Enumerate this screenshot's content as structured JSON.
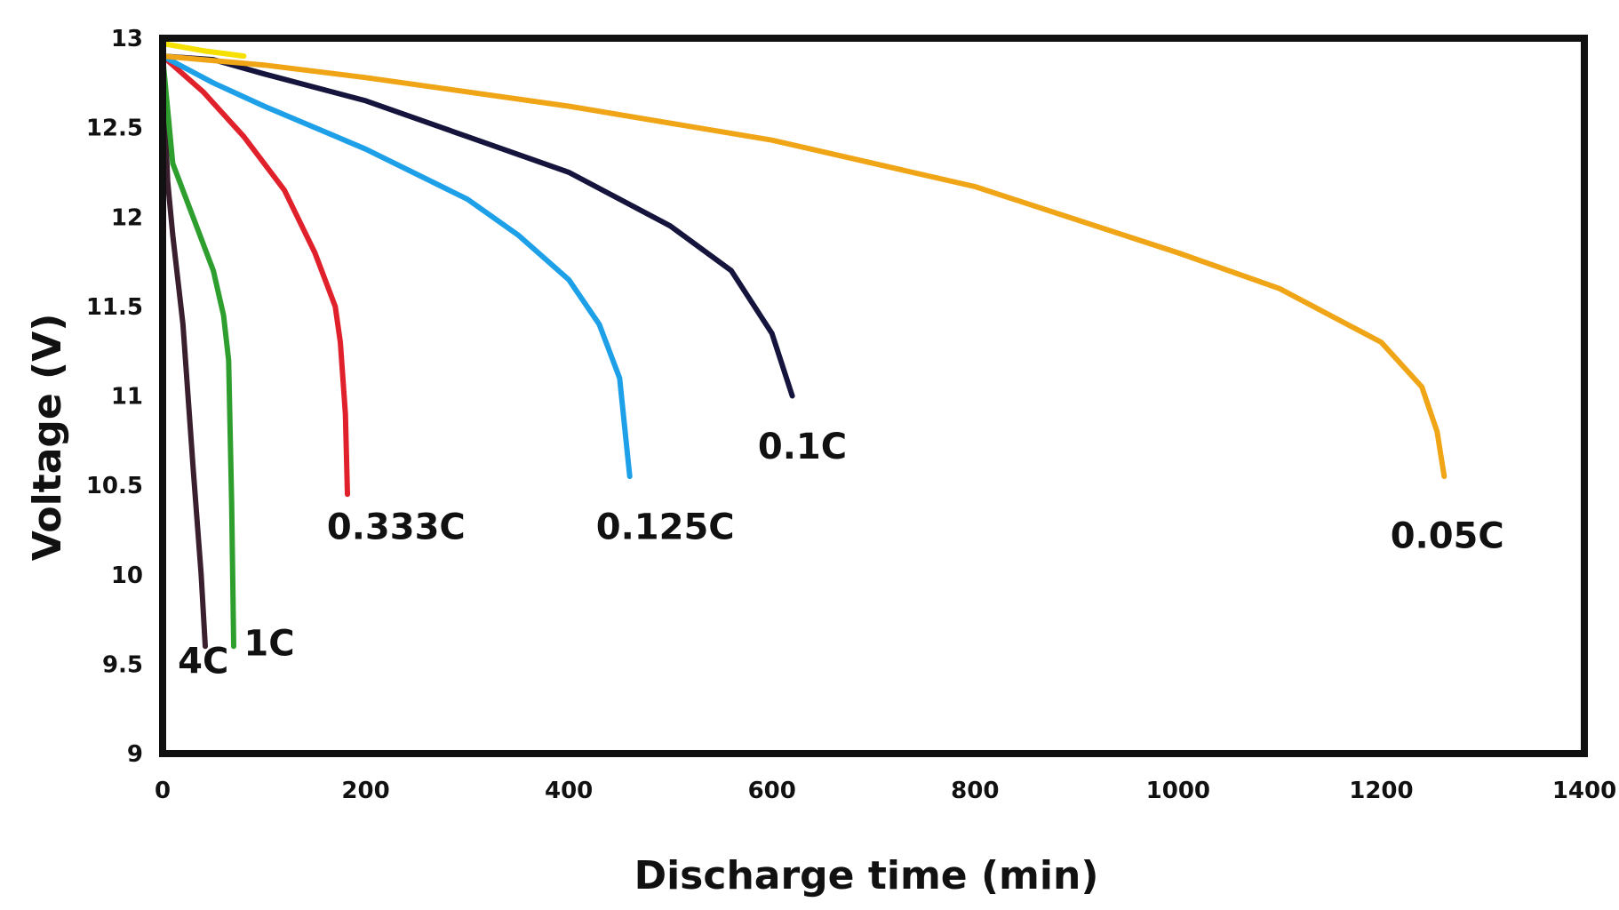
{
  "chart_data": {
    "type": "line",
    "title": "",
    "xlabel": "Discharge time (min)",
    "ylabel": "Voltage (V)",
    "xlim": [
      0,
      1400
    ],
    "ylim": [
      9,
      13
    ],
    "xticks": [
      0,
      200,
      400,
      600,
      800,
      1000,
      1200,
      1400
    ],
    "yticks": [
      9,
      9.5,
      10,
      10.5,
      11,
      11.5,
      12,
      12.5,
      13
    ],
    "xtick_labels": [
      "0",
      "200",
      "400",
      "600",
      "800",
      "1000",
      "1200",
      "1400"
    ],
    "ytick_labels": [
      "9",
      "9.5",
      "10",
      "10.5",
      "11",
      "11.5",
      "12",
      "12.5",
      "13"
    ],
    "grid": false,
    "legend": "none",
    "series": [
      {
        "name": "4C",
        "color": "#3a1f2e",
        "points": [
          [
            0,
            12.9
          ],
          [
            5,
            12.2
          ],
          [
            10,
            11.9
          ],
          [
            20,
            11.4
          ],
          [
            30,
            10.6
          ],
          [
            38,
            10.0
          ],
          [
            42,
            9.6
          ]
        ]
      },
      {
        "name": "1C",
        "color": "#2e9e2e",
        "points": [
          [
            0,
            12.9
          ],
          [
            10,
            12.3
          ],
          [
            30,
            12.0
          ],
          [
            50,
            11.7
          ],
          [
            60,
            11.45
          ],
          [
            65,
            11.2
          ],
          [
            68,
            10.4
          ],
          [
            70,
            9.6
          ]
        ]
      },
      {
        "name": "0.333C",
        "color": "#e0202a",
        "points": [
          [
            0,
            12.9
          ],
          [
            40,
            12.7
          ],
          [
            80,
            12.45
          ],
          [
            120,
            12.15
          ],
          [
            150,
            11.8
          ],
          [
            170,
            11.5
          ],
          [
            175,
            11.3
          ],
          [
            180,
            10.9
          ],
          [
            182,
            10.45
          ]
        ]
      },
      {
        "name": "0.125C",
        "color": "#1ea0e8",
        "points": [
          [
            0,
            12.9
          ],
          [
            50,
            12.75
          ],
          [
            100,
            12.62
          ],
          [
            200,
            12.38
          ],
          [
            300,
            12.1
          ],
          [
            350,
            11.9
          ],
          [
            400,
            11.65
          ],
          [
            430,
            11.4
          ],
          [
            450,
            11.1
          ],
          [
            460,
            10.55
          ]
        ]
      },
      {
        "name": "0.1C",
        "color": "#14143c",
        "points": [
          [
            0,
            12.9
          ],
          [
            50,
            12.88
          ],
          [
            100,
            12.8
          ],
          [
            200,
            12.65
          ],
          [
            300,
            12.45
          ],
          [
            400,
            12.25
          ],
          [
            500,
            11.95
          ],
          [
            560,
            11.7
          ],
          [
            600,
            11.35
          ],
          [
            620,
            11.0
          ]
        ]
      },
      {
        "name": "0.05C",
        "color": "#f0a516",
        "points": [
          [
            0,
            12.9
          ],
          [
            100,
            12.85
          ],
          [
            200,
            12.78
          ],
          [
            400,
            12.62
          ],
          [
            600,
            12.43
          ],
          [
            800,
            12.17
          ],
          [
            1000,
            11.8
          ],
          [
            1100,
            11.6
          ],
          [
            1200,
            11.3
          ],
          [
            1240,
            11.05
          ],
          [
            1255,
            10.8
          ],
          [
            1262,
            10.55
          ]
        ]
      },
      {
        "name": "",
        "color": "#f5e000",
        "points": [
          [
            0,
            12.97
          ],
          [
            40,
            12.93
          ],
          [
            80,
            12.9
          ]
        ]
      }
    ],
    "annotations": [
      {
        "text": "4C",
        "x": 40,
        "y": 9.45
      },
      {
        "text": "1C",
        "x": 105,
        "y": 9.55
      },
      {
        "text": "0.333C",
        "x": 230,
        "y": 10.2
      },
      {
        "text": "0.125C",
        "x": 495,
        "y": 10.2
      },
      {
        "text": "0.1C",
        "x": 630,
        "y": 10.65
      },
      {
        "text": "0.05C",
        "x": 1265,
        "y": 10.15
      }
    ]
  }
}
